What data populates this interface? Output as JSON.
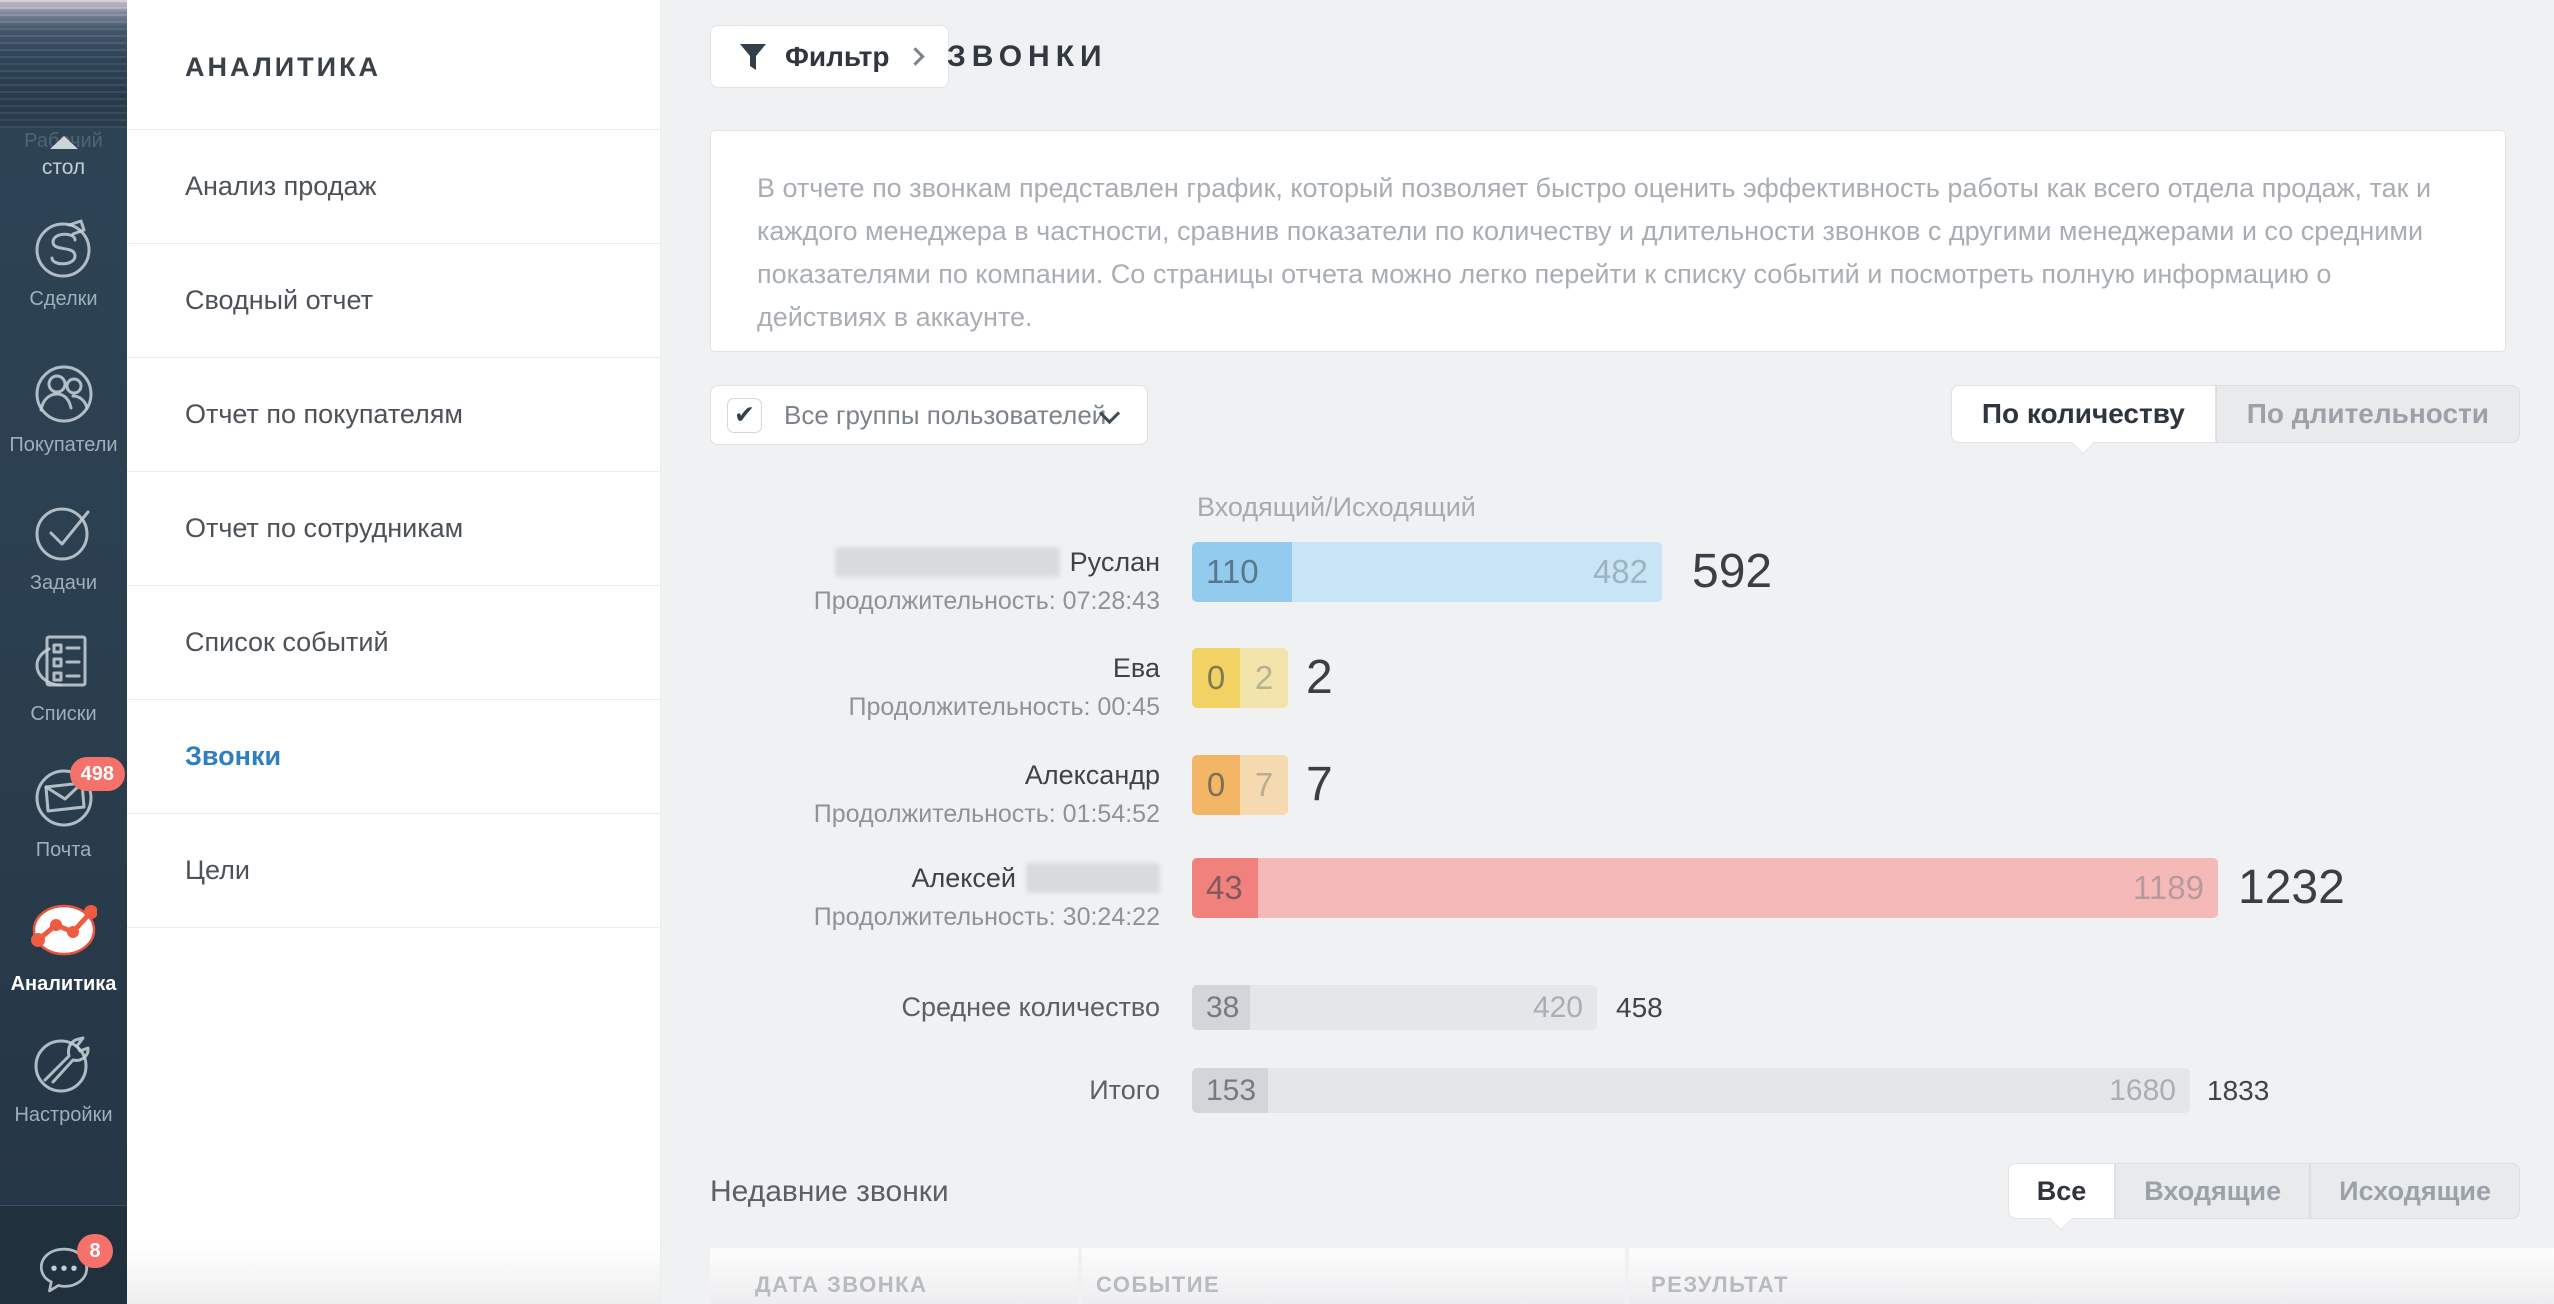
{
  "left_nav": {
    "dashboard_label_line1": "Рабочий",
    "dashboard_label_line2": "стол",
    "items": [
      {
        "label": "Сделки",
        "icon": "deals-icon"
      },
      {
        "label": "Покупатели",
        "icon": "customers-icon"
      },
      {
        "label": "Задачи",
        "icon": "tasks-icon"
      },
      {
        "label": "Списки",
        "icon": "lists-icon"
      },
      {
        "label": "Почта",
        "icon": "mail-icon",
        "badge": "498"
      },
      {
        "label": "Аналитика",
        "icon": "analytics-icon",
        "active": true
      },
      {
        "label": "Настройки",
        "icon": "settings-icon"
      }
    ],
    "chat": {
      "icon": "chat-icon",
      "badge": "8"
    },
    "badge_color": "#f4716c"
  },
  "submenu": {
    "title": "АНАЛИТИКА",
    "items": [
      {
        "label": "Анализ продаж",
        "active": false
      },
      {
        "label": "Сводный отчет",
        "active": false
      },
      {
        "label": "Отчет по покупателям",
        "active": false
      },
      {
        "label": "Отчет по сотрудникам",
        "active": false
      },
      {
        "label": "Список событий",
        "active": false
      },
      {
        "label": "Звонки",
        "active": true
      },
      {
        "label": "Цели",
        "active": false
      }
    ],
    "active_color": "#2e80c0"
  },
  "toolbar": {
    "filter_label": "Фильтр",
    "page_title": "ЗВОНКИ"
  },
  "description": "В отчете по звонкам представлен график, который позволяет быстро оценить эффективность работы как всего отдела продаж, так и каждого менеджера в частности, сравнив показатели по количеству и длительности звонков с другими менеджерами и со средними показателями по компании. Со страницы отчета можно легко перейти к списку событий и посмотреть полную информацию о действиях в аккаунте.",
  "filters": {
    "group_select": {
      "label": "Все группы пользователей",
      "checked": true,
      "check_glyph": "✔"
    },
    "mode_tabs": [
      {
        "label": "По количеству",
        "active": true
      },
      {
        "label": "По длительности",
        "active": false
      }
    ]
  },
  "chart_data": {
    "type": "bar",
    "orientation": "horizontal",
    "series_header": "Входящий/Исходящий",
    "series": [
      "Входящий",
      "Исходящий"
    ],
    "rows": [
      {
        "name": "Руслан",
        "name_redacted": "before",
        "duration": "Продолжительность: 07:28:43",
        "incoming": 110,
        "outgoing": 482,
        "total": 592,
        "color": "blue",
        "in_w": 100,
        "out_w": 370
      },
      {
        "name": "Ева",
        "duration": "Продолжительность: 00:45",
        "incoming": 0,
        "outgoing": 2,
        "total": 2,
        "color": "yellow",
        "in_w": 48,
        "out_w": 48
      },
      {
        "name": "Александр",
        "duration": "Продолжительность: 01:54:52",
        "incoming": 0,
        "outgoing": 7,
        "total": 7,
        "color": "orange",
        "in_w": 48,
        "out_w": 48
      },
      {
        "name": "Алексей",
        "name_redacted": "after",
        "duration": "Продолжительность: 30:24:22",
        "incoming": 43,
        "outgoing": 1189,
        "total": 1232,
        "color": "red",
        "in_w": 66,
        "out_w": 960
      }
    ],
    "summary_rows": [
      {
        "name": "Среднее количество",
        "incoming": 38,
        "outgoing": 420,
        "total": 458,
        "color": "gray",
        "in_w": 58,
        "out_w": 347
      },
      {
        "name": "Итого",
        "incoming": 153,
        "outgoing": 1680,
        "total": 1833,
        "color": "gray",
        "in_w": 76,
        "out_w": 922
      }
    ],
    "colors": {
      "blue_in": "#92cbed",
      "blue_out": "#c9e4f5",
      "yellow_in": "#f1d262",
      "yellow_out": "#f1e3a9",
      "orange_in": "#f3b566",
      "orange_out": "#f5d9af",
      "red_in": "#f0817d",
      "red_out": "#f5bab8",
      "gray_in": "#d4d5d9",
      "gray_out": "#e5e6e9"
    }
  },
  "recent_calls": {
    "title": "Недавние звонки",
    "tabs": [
      {
        "label": "Все",
        "active": true
      },
      {
        "label": "Входящие",
        "active": false
      },
      {
        "label": "Исходящие",
        "active": false
      }
    ],
    "columns": [
      "ДАТА ЗВОНКА",
      "СОБЫТИЕ",
      "РЕЗУЛЬТАТ"
    ]
  }
}
